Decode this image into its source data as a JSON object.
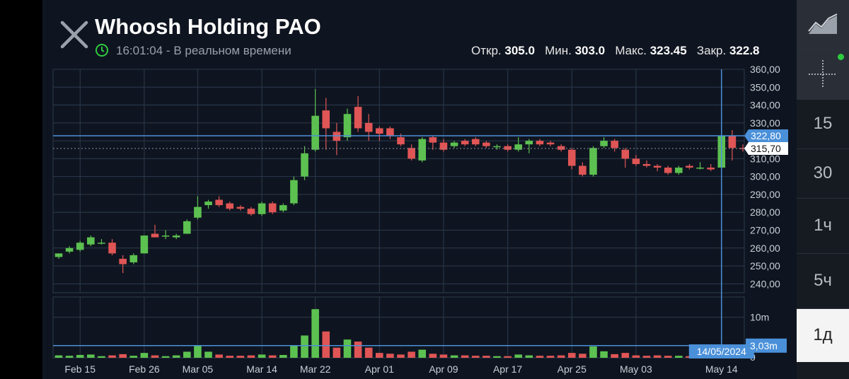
{
  "header": {
    "title": "Whoosh Holding PAO",
    "time": "16:01:04",
    "realtime_label": "В реальном времени",
    "ohlc": [
      {
        "label": "Откр.",
        "value": "305.0"
      },
      {
        "label": "Мин.",
        "value": "303.0"
      },
      {
        "label": "Макс.",
        "value": "323.45"
      },
      {
        "label": "Закр.",
        "value": "322.8"
      }
    ]
  },
  "right_panel": {
    "items": [
      {
        "label": "",
        "icon": "line-chart-icon"
      },
      {
        "label": "",
        "icon": "crosshair-icon"
      },
      {
        "label": "15"
      },
      {
        "label": "30"
      },
      {
        "label": "1ч"
      },
      {
        "label": "5ч"
      },
      {
        "label": "1д",
        "selected": true
      }
    ],
    "status_dot_color": "#2ecc40"
  },
  "colors": {
    "up": "#5cc150",
    "down": "#e05555",
    "grid": "#2b3a4d",
    "crosshair": "#4a90d9",
    "background": "#0f1520"
  },
  "chart_data": {
    "type": "candlestick",
    "price_axis": {
      "range": [
        235,
        360
      ],
      "ticks": [
        "360,00",
        "350,00",
        "340,00",
        "330,00",
        "320,00",
        "310,00",
        "300,00",
        "290,00",
        "280,00",
        "270,00",
        "260,00",
        "250,00",
        "240,00"
      ]
    },
    "volume_axis": {
      "ticks": [
        "10m",
        "0"
      ]
    },
    "x_ticks": [
      "Feb 15",
      "Feb 26",
      "Mar 05",
      "Mar 14",
      "Mar 22",
      "Apr 01",
      "Apr 09",
      "Apr 17",
      "Apr 25",
      "May 03",
      "May 14"
    ],
    "crosshair": {
      "date_label": "14/05/2024",
      "price_label": "322,80",
      "volume_label": "3,03m"
    },
    "last_price_label": "315,70",
    "candles": [
      {
        "o": 255,
        "h": 257,
        "l": 254,
        "c": 257,
        "v": 0.6
      },
      {
        "o": 258,
        "h": 261,
        "l": 257,
        "c": 260,
        "v": 0.5
      },
      {
        "o": 259,
        "h": 264,
        "l": 258,
        "c": 263,
        "v": 0.7
      },
      {
        "o": 262,
        "h": 267,
        "l": 261,
        "c": 266,
        "v": 0.8
      },
      {
        "o": 263,
        "h": 265,
        "l": 262,
        "c": 263,
        "v": 0.4
      },
      {
        "o": 263,
        "h": 265,
        "l": 256,
        "c": 257,
        "v": 0.6
      },
      {
        "o": 254,
        "h": 256,
        "l": 246,
        "c": 251,
        "v": 0.9
      },
      {
        "o": 252,
        "h": 257,
        "l": 251,
        "c": 256,
        "v": 0.5
      },
      {
        "o": 257,
        "h": 267,
        "l": 257,
        "c": 267,
        "v": 1.2
      },
      {
        "o": 268,
        "h": 273,
        "l": 266,
        "c": 266,
        "v": 0.6
      },
      {
        "o": 267,
        "h": 270,
        "l": 265,
        "c": 267,
        "v": 0.4
      },
      {
        "o": 266,
        "h": 268,
        "l": 265,
        "c": 267,
        "v": 0.6
      },
      {
        "o": 268,
        "h": 276,
        "l": 268,
        "c": 275,
        "v": 1.5
      },
      {
        "o": 277,
        "h": 289,
        "l": 276,
        "c": 283,
        "v": 3.0
      },
      {
        "o": 284,
        "h": 287,
        "l": 282,
        "c": 286,
        "v": 1.5
      },
      {
        "o": 287,
        "h": 289,
        "l": 283,
        "c": 284,
        "v": 0.8
      },
      {
        "o": 285,
        "h": 286,
        "l": 281,
        "c": 282,
        "v": 0.5
      },
      {
        "o": 283,
        "h": 284,
        "l": 281,
        "c": 282,
        "v": 0.5
      },
      {
        "o": 282,
        "h": 283,
        "l": 278,
        "c": 279,
        "v": 0.6
      },
      {
        "o": 279,
        "h": 286,
        "l": 278,
        "c": 285,
        "v": 0.8
      },
      {
        "o": 285,
        "h": 286,
        "l": 279,
        "c": 280,
        "v": 0.6
      },
      {
        "o": 281,
        "h": 285,
        "l": 280,
        "c": 284,
        "v": 0.7
      },
      {
        "o": 285,
        "h": 300,
        "l": 284,
        "c": 298,
        "v": 3.0
      },
      {
        "o": 300,
        "h": 317,
        "l": 298,
        "c": 313,
        "v": 5.5
      },
      {
        "o": 315,
        "h": 349,
        "l": 314,
        "c": 334,
        "v": 12.0
      },
      {
        "o": 337,
        "h": 344,
        "l": 315,
        "c": 327,
        "v": 6.5
      },
      {
        "o": 325,
        "h": 330,
        "l": 312,
        "c": 320,
        "v": 2.5
      },
      {
        "o": 322,
        "h": 338,
        "l": 320,
        "c": 335,
        "v": 4.5
      },
      {
        "o": 339,
        "h": 345,
        "l": 325,
        "c": 327,
        "v": 4.0
      },
      {
        "o": 330,
        "h": 335,
        "l": 320,
        "c": 325,
        "v": 2.5
      },
      {
        "o": 327,
        "h": 328,
        "l": 320,
        "c": 324,
        "v": 1.2
      },
      {
        "o": 327,
        "h": 328,
        "l": 321,
        "c": 323,
        "v": 1.0
      },
      {
        "o": 322,
        "h": 324,
        "l": 317,
        "c": 318,
        "v": 0.8
      },
      {
        "o": 316,
        "h": 318,
        "l": 309,
        "c": 310,
        "v": 1.5
      },
      {
        "o": 309,
        "h": 322,
        "l": 308,
        "c": 321,
        "v": 2.0
      },
      {
        "o": 322,
        "h": 323,
        "l": 315,
        "c": 319,
        "v": 1.0
      },
      {
        "o": 319,
        "h": 321,
        "l": 314,
        "c": 315,
        "v": 0.8
      },
      {
        "o": 317,
        "h": 320,
        "l": 316,
        "c": 319,
        "v": 0.6
      },
      {
        "o": 320,
        "h": 321,
        "l": 317,
        "c": 318,
        "v": 0.6
      },
      {
        "o": 321,
        "h": 322,
        "l": 317,
        "c": 318,
        "v": 0.5
      },
      {
        "o": 319,
        "h": 320,
        "l": 316,
        "c": 317,
        "v": 0.5
      },
      {
        "o": 317,
        "h": 318,
        "l": 315,
        "c": 317,
        "v": 0.4
      },
      {
        "o": 317,
        "h": 318,
        "l": 314,
        "c": 315,
        "v": 0.4
      },
      {
        "o": 315,
        "h": 322,
        "l": 314,
        "c": 318,
        "v": 0.8
      },
      {
        "o": 318,
        "h": 321,
        "l": 313,
        "c": 320,
        "v": 0.6
      },
      {
        "o": 320,
        "h": 321,
        "l": 317,
        "c": 318,
        "v": 0.5
      },
      {
        "o": 319,
        "h": 320,
        "l": 317,
        "c": 318,
        "v": 0.5
      },
      {
        "o": 317,
        "h": 318,
        "l": 314,
        "c": 315,
        "v": 0.6
      },
      {
        "o": 315,
        "h": 316,
        "l": 304,
        "c": 306,
        "v": 1.2
      },
      {
        "o": 306,
        "h": 308,
        "l": 300,
        "c": 301,
        "v": 1.0
      },
      {
        "o": 301,
        "h": 317,
        "l": 300,
        "c": 316,
        "v": 2.8
      },
      {
        "o": 317,
        "h": 322,
        "l": 316,
        "c": 320,
        "v": 1.6
      },
      {
        "o": 320,
        "h": 321,
        "l": 314,
        "c": 316,
        "v": 0.9
      },
      {
        "o": 315,
        "h": 316,
        "l": 305,
        "c": 310,
        "v": 1.2
      },
      {
        "o": 310,
        "h": 312,
        "l": 306,
        "c": 307,
        "v": 0.6
      },
      {
        "o": 307,
        "h": 309,
        "l": 305,
        "c": 306,
        "v": 0.5
      },
      {
        "o": 306,
        "h": 307,
        "l": 303,
        "c": 305,
        "v": 0.6
      },
      {
        "o": 305,
        "h": 306,
        "l": 301,
        "c": 302,
        "v": 0.5
      },
      {
        "o": 302,
        "h": 306,
        "l": 301,
        "c": 305,
        "v": 0.5
      },
      {
        "o": 306,
        "h": 307,
        "l": 304,
        "c": 305,
        "v": 0.4
      },
      {
        "o": 305,
        "h": 308,
        "l": 304,
        "c": 305,
        "v": 0.3
      },
      {
        "o": 305,
        "h": 307,
        "l": 303,
        "c": 304,
        "v": 0.4
      },
      {
        "o": 305,
        "h": 323,
        "l": 303,
        "c": 322.8,
        "v": 3.0
      },
      {
        "o": 323,
        "h": 326,
        "l": 309,
        "c": 316,
        "v": 2.2
      },
      {
        "o": 316,
        "h": 318,
        "l": 314,
        "c": 315.7,
        "v": 0.3
      }
    ]
  }
}
